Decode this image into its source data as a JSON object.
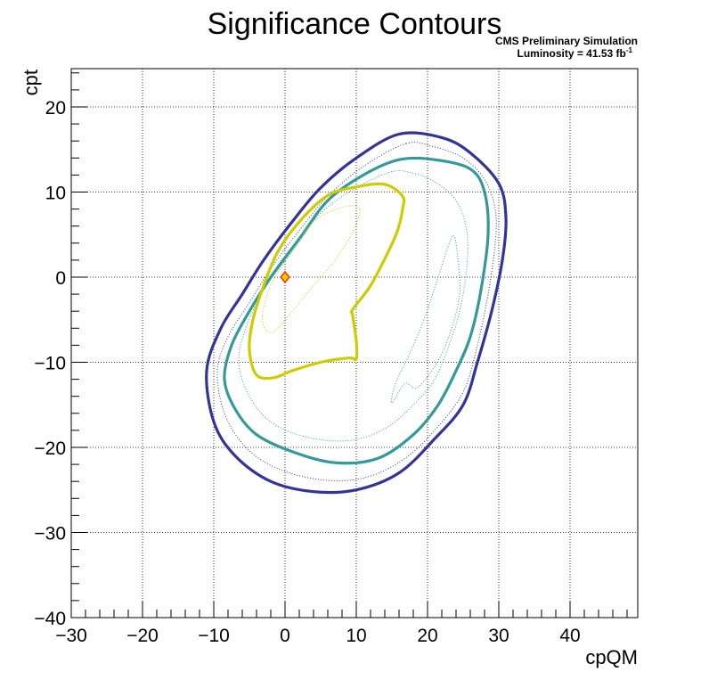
{
  "chart_data": {
    "type": "contour",
    "title": "Significance Contours",
    "annotations": {
      "line1": "CMS Preliminary Simulation",
      "line2_prefix": "Luminosity = 41.53 fb",
      "line2_sup": "-1"
    },
    "xlabel": "cpQM",
    "ylabel": "cpt",
    "xlim": [
      -30,
      49.5
    ],
    "ylim": [
      -40,
      24.5
    ],
    "x_ticks": [
      -30,
      -20,
      -10,
      0,
      10,
      20,
      30,
      40
    ],
    "y_ticks": [
      -40,
      -30,
      -20,
      -10,
      0,
      10,
      20
    ],
    "grid": true,
    "best_fit": {
      "x": 0,
      "y": 0,
      "color": "#ff3300",
      "fill": "#ffcc00"
    },
    "contours": [
      {
        "color": "#333399",
        "style": "solid",
        "weight": "thick",
        "points": [
          [
            16,
            16.8
          ],
          [
            10,
            14
          ],
          [
            5,
            10.5
          ],
          [
            1,
            6.5
          ],
          [
            -3,
            2
          ],
          [
            -6,
            -2
          ],
          [
            -9,
            -6
          ],
          [
            -11,
            -11
          ],
          [
            -10,
            -17
          ],
          [
            -7,
            -21
          ],
          [
            -2,
            -24
          ],
          [
            4,
            -25.2
          ],
          [
            10,
            -25
          ],
          [
            16,
            -23
          ],
          [
            21,
            -19
          ],
          [
            25,
            -15
          ],
          [
            27,
            -10
          ],
          [
            29,
            -4
          ],
          [
            30.5,
            2
          ],
          [
            31,
            7
          ],
          [
            30,
            11
          ],
          [
            26,
            14.6
          ],
          [
            22,
            16.4
          ],
          [
            16,
            16.8
          ]
        ]
      },
      {
        "color": "#333399",
        "style": "dotted",
        "weight": "thin",
        "points": [
          [
            17,
            15.7
          ],
          [
            11,
            13
          ],
          [
            6,
            9.5
          ],
          [
            2,
            5.5
          ],
          [
            -2,
            1
          ],
          [
            -5,
            -3
          ],
          [
            -8,
            -7
          ],
          [
            -9.5,
            -11
          ],
          [
            -8.5,
            -16
          ],
          [
            -5.5,
            -20
          ],
          [
            -1,
            -22.5
          ],
          [
            5,
            -23.8
          ],
          [
            11,
            -23.6
          ],
          [
            16.5,
            -21.5
          ],
          [
            21,
            -18
          ],
          [
            25,
            -13.5
          ],
          [
            27,
            -8
          ],
          [
            28.5,
            -2
          ],
          [
            29.5,
            4
          ],
          [
            29.5,
            8
          ],
          [
            28,
            11.5
          ],
          [
            25,
            14
          ],
          [
            21,
            15.3
          ],
          [
            17,
            15.7
          ]
        ]
      },
      {
        "color": "#339999",
        "style": "solid",
        "weight": "thick",
        "points": [
          [
            16,
            13.8
          ],
          [
            11,
            12
          ],
          [
            6,
            9
          ],
          [
            2,
            4.5
          ],
          [
            -2,
            0
          ],
          [
            -5,
            -4
          ],
          [
            -7.5,
            -8
          ],
          [
            -8.5,
            -12
          ],
          [
            -7,
            -15.5
          ],
          [
            -4,
            -18.5
          ],
          [
            1,
            -20.5
          ],
          [
            7,
            -21.8
          ],
          [
            13,
            -21.3
          ],
          [
            18,
            -18.5
          ],
          [
            21.5,
            -15
          ],
          [
            24,
            -11
          ],
          [
            26,
            -7
          ],
          [
            27.5,
            -1.5
          ],
          [
            28.5,
            5
          ],
          [
            28,
            10
          ],
          [
            26,
            12.7
          ],
          [
            21,
            13.8
          ],
          [
            16,
            13.8
          ]
        ]
      },
      {
        "color": "#339999",
        "style": "dotted",
        "weight": "thin",
        "points": [
          [
            15,
            12.4
          ],
          [
            10,
            10.5
          ],
          [
            5,
            7.5
          ],
          [
            1,
            3
          ],
          [
            -3,
            -1.5
          ],
          [
            -5.5,
            -6
          ],
          [
            -6.5,
            -10
          ],
          [
            -5,
            -14
          ],
          [
            -2,
            -17
          ],
          [
            3,
            -18.8
          ],
          [
            9,
            -19.2
          ],
          [
            14,
            -17.8
          ],
          [
            18,
            -15
          ],
          [
            21,
            -12
          ],
          [
            23,
            -8
          ],
          [
            24.5,
            -4
          ],
          [
            25.5,
            1
          ],
          [
            25.5,
            5.5
          ],
          [
            24,
            9
          ],
          [
            21,
            11.2
          ],
          [
            18,
            12.2
          ],
          [
            15,
            12.4
          ]
        ]
      },
      {
        "color": "#339999",
        "style": "dotted",
        "weight": "thin",
        "points": [
          [
            23.5,
            4.8
          ],
          [
            21.5,
            0
          ],
          [
            19.5,
            -5
          ],
          [
            17.5,
            -9
          ],
          [
            15.5,
            -12.5
          ],
          [
            15,
            -14.8
          ],
          [
            16.8,
            -12.5
          ],
          [
            18.5,
            -13
          ],
          [
            21,
            -10.5
          ],
          [
            23,
            -7
          ],
          [
            24.5,
            -2
          ],
          [
            24.2,
            2.5
          ],
          [
            23.5,
            4.8
          ]
        ]
      },
      {
        "color": "#cccc00",
        "style": "solid",
        "weight": "thick",
        "points": [
          [
            16.5,
            9.5
          ],
          [
            14,
            10.9
          ],
          [
            10,
            10.6
          ],
          [
            6,
            9.6
          ],
          [
            2,
            6.5
          ],
          [
            -1,
            3
          ],
          [
            -3,
            -1
          ],
          [
            -4.5,
            -5
          ],
          [
            -5,
            -8.5
          ],
          [
            -4,
            -11.5
          ],
          [
            -1.5,
            -11.8
          ],
          [
            1,
            -11
          ],
          [
            5,
            -10
          ],
          [
            9,
            -9.5
          ],
          [
            10,
            -9.6
          ],
          [
            10,
            -7.5
          ],
          [
            9.5,
            -4.5
          ],
          [
            9.5,
            -3.8
          ],
          [
            12,
            -1
          ],
          [
            14.5,
            3
          ],
          [
            15.8,
            5.5
          ],
          [
            16.5,
            8
          ],
          [
            16.5,
            9.5
          ]
        ]
      },
      {
        "color": "#cccc00",
        "style": "dotted",
        "weight": "thin",
        "points": [
          [
            10.5,
            8
          ],
          [
            8,
            8.2
          ],
          [
            4,
            6.5
          ],
          [
            1,
            3
          ],
          [
            -2,
            -1
          ],
          [
            -3.2,
            -5
          ],
          [
            -1.8,
            -6.5
          ],
          [
            1,
            -4
          ],
          [
            4,
            -1
          ],
          [
            7,
            2
          ],
          [
            9.3,
            5
          ],
          [
            10.5,
            8
          ]
        ]
      }
    ]
  }
}
